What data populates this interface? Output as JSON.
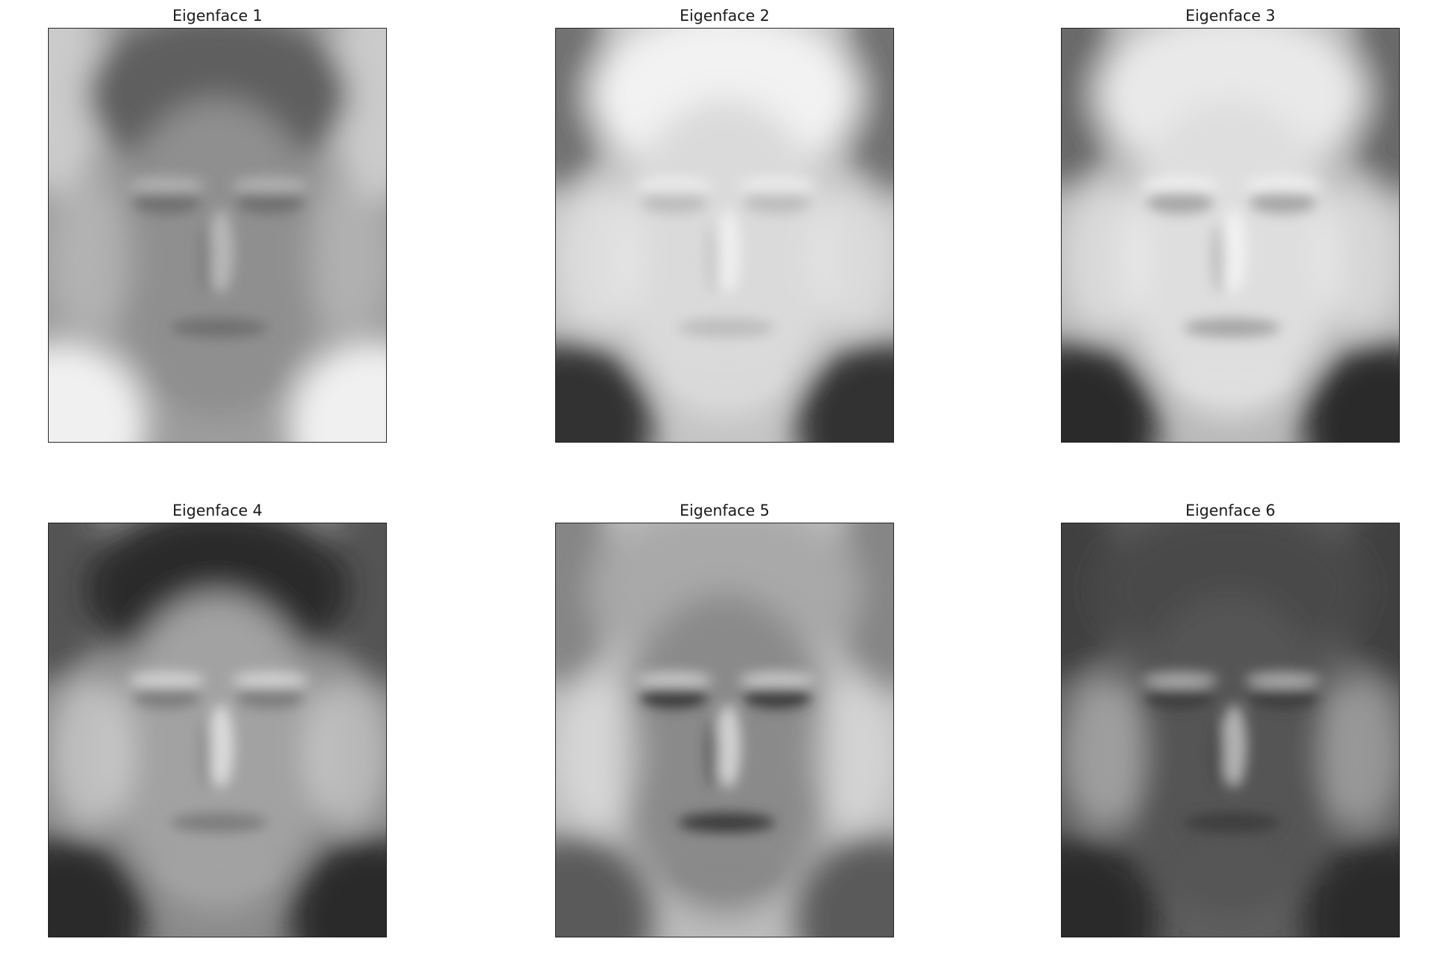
{
  "figure": {
    "panels": [
      {
        "title": "Eigenface 1",
        "tone": {
          "background": "#9d9d9d",
          "face": "#8f8f8f",
          "hair": "#5e5e5e",
          "features": "#6f6f6f",
          "highlight": "#c8c8c8",
          "corner": "#f0f0f0"
        }
      },
      {
        "title": "Eigenface 2",
        "tone": {
          "background": "#c4c4c4",
          "face": "#dadada",
          "hair": "#f2f2f2",
          "features": "#bdbdbd",
          "highlight": "#f6f6f6",
          "corner": "#303030"
        }
      },
      {
        "title": "Eigenface 3",
        "tone": {
          "background": "#b9b9b9",
          "face": "#dedede",
          "hair": "#e9e9e9",
          "features": "#a6a6a6",
          "highlight": "#fafafa",
          "corner": "#2a2a2a"
        }
      },
      {
        "title": "Eigenface 4",
        "tone": {
          "background": "#8a8a8a",
          "face": "#a2a2a2",
          "hair": "#2c2c2c",
          "features": "#7d7d7d",
          "highlight": "#f2f2f2",
          "corner": "#2a2a2a"
        }
      },
      {
        "title": "Eigenface 5",
        "tone": {
          "background": "#bcbcbc",
          "face": "#8a8a8a",
          "hair": "#a9a9a9",
          "features": "#3a3a3a",
          "highlight": "#efefef",
          "corner": "#5a5a5a"
        }
      },
      {
        "title": "Eigenface 6",
        "tone": {
          "background": "#5e5e5e",
          "face": "#555555",
          "hair": "#4a4a4a",
          "features": "#3c3c3c",
          "highlight": "#dcdcdc",
          "corner": "#2a2a2a"
        }
      }
    ]
  }
}
